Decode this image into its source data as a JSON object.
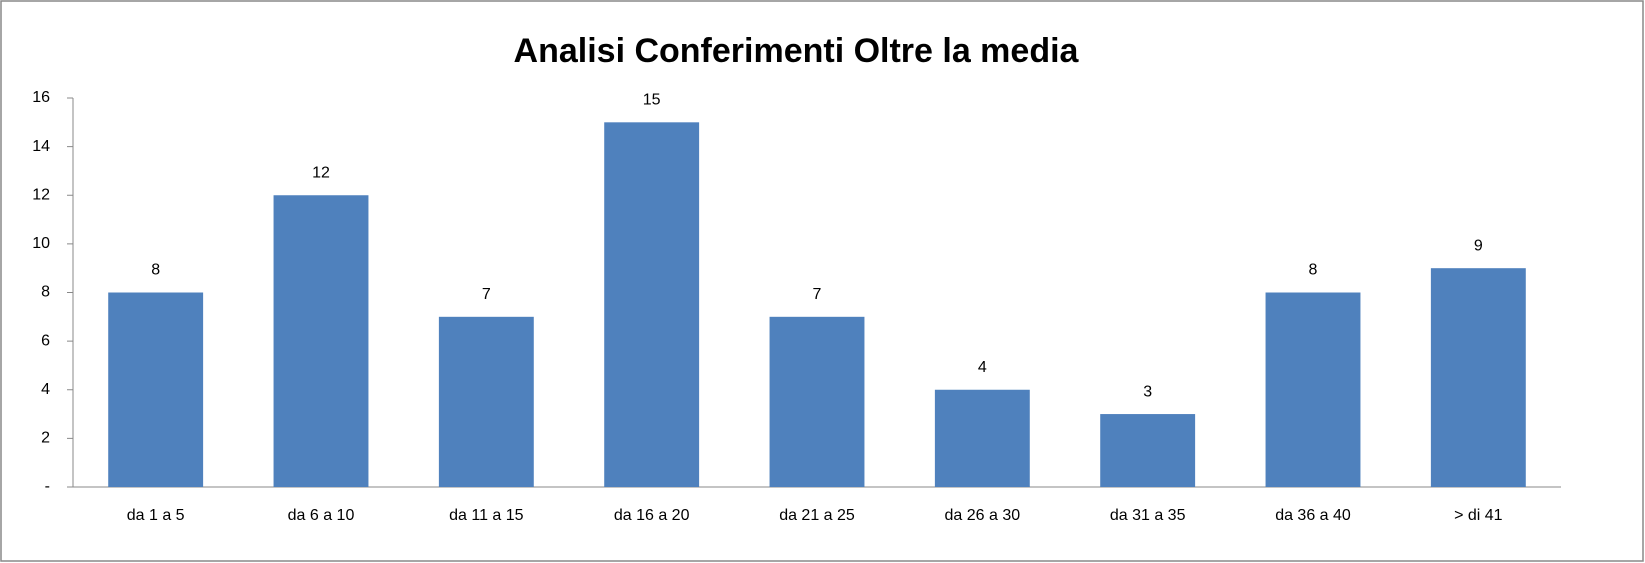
{
  "chart_data": {
    "type": "bar",
    "title": "Analisi Conferimenti Oltre la media",
    "categories": [
      "da 1 a 5",
      "da 6 a 10",
      "da 11 a 15",
      "da 16 a 20",
      "da 21 a 25",
      "da 26 a 30",
      "da 31 a 35",
      "da 36 a 40",
      "> di 41"
    ],
    "values": [
      8,
      12,
      7,
      15,
      7,
      4,
      3,
      8,
      9
    ],
    "color": "#4f81bd",
    "ylim": [
      0,
      16
    ],
    "yticks": [
      {
        "value": 0,
        "label": "-"
      },
      2,
      4,
      6,
      8,
      10,
      12,
      14,
      16
    ],
    "grid": false
  }
}
